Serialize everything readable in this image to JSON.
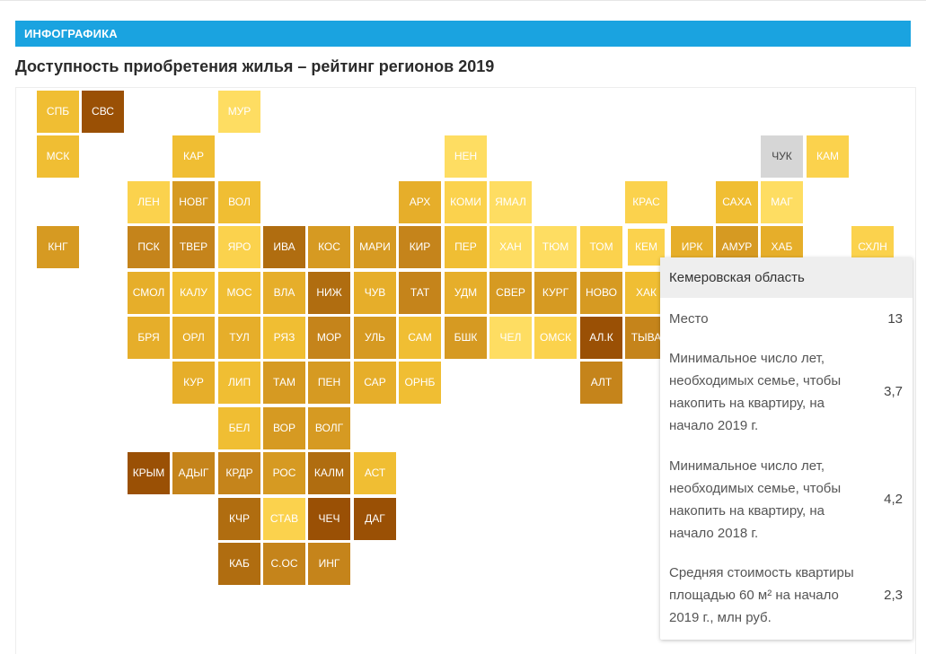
{
  "header": {
    "badge": "ИНФОГРАФИКА",
    "title": "Доступность приобретения жилья – рейтинг регионов 2019"
  },
  "palette": {
    "1": "#fedd62",
    "2": "#fbd24d",
    "3": "#f0be33",
    "4": "#e6ae2a",
    "5": "#d69a22",
    "6": "#c5841b",
    "7": "#b06d10",
    "8": "#9a5005",
    "gray": "#d6d6d6",
    "banner": "#1aa3e0"
  },
  "regions": [
    {
      "label": "СПБ",
      "c": 3
    },
    {
      "label": "СВС",
      "c": 8
    },
    {
      "label": "МУР",
      "c": 1
    },
    {
      "label": "МСК",
      "c": 3
    },
    {
      "label": "КАР",
      "c": 3
    },
    {
      "label": "НЕН",
      "c": 1
    },
    {
      "label": "ЧУК",
      "c": "gray"
    },
    {
      "label": "КАМ",
      "c": 2
    },
    {
      "label": "ЛЕН",
      "c": 2
    },
    {
      "label": "НОВГ",
      "c": 5
    },
    {
      "label": "ВОЛ",
      "c": 3
    },
    {
      "label": "АРХ",
      "c": 4
    },
    {
      "label": "КОМИ",
      "c": 2
    },
    {
      "label": "ЯМАЛ",
      "c": 1
    },
    {
      "label": "КРАС",
      "c": 2
    },
    {
      "label": "САХА",
      "c": 3
    },
    {
      "label": "МАГ",
      "c": 1
    },
    {
      "label": "КНГ",
      "c": 5
    },
    {
      "label": "ПСК",
      "c": 6
    },
    {
      "label": "ТВЕР",
      "c": 6
    },
    {
      "label": "ЯРО",
      "c": 2
    },
    {
      "label": "ИВА",
      "c": 7
    },
    {
      "label": "КОС",
      "c": 5
    },
    {
      "label": "МАРИ",
      "c": 5
    },
    {
      "label": "КИР",
      "c": 6
    },
    {
      "label": "ПЕР",
      "c": 3
    },
    {
      "label": "ХАН",
      "c": 1
    },
    {
      "label": "ТЮМ",
      "c": 1
    },
    {
      "label": "ТОМ",
      "c": 2
    },
    {
      "label": "КЕМ",
      "c": 2
    },
    {
      "label": "ИРК",
      "c": 4
    },
    {
      "label": "АМУР",
      "c": 5
    },
    {
      "label": "ХАБ",
      "c": 4
    },
    {
      "label": "СХЛН",
      "c": 2
    },
    {
      "label": "СМОЛ",
      "c": 4
    },
    {
      "label": "КАЛУ",
      "c": 3
    },
    {
      "label": "МОС",
      "c": 3
    },
    {
      "label": "ВЛА",
      "c": 4
    },
    {
      "label": "НИЖ",
      "c": 7
    },
    {
      "label": "ЧУВ",
      "c": 4
    },
    {
      "label": "ТАТ",
      "c": 6
    },
    {
      "label": "УДМ",
      "c": 4
    },
    {
      "label": "СВЕР",
      "c": 5
    },
    {
      "label": "КУРГ",
      "c": 5
    },
    {
      "label": "НОВО",
      "c": 5
    },
    {
      "label": "ХАК",
      "c": 3
    },
    {
      "label": "БРЯ",
      "c": 4
    },
    {
      "label": "ОРЛ",
      "c": 4
    },
    {
      "label": "ТУЛ",
      "c": 4
    },
    {
      "label": "РЯЗ",
      "c": 3
    },
    {
      "label": "МОР",
      "c": 6
    },
    {
      "label": "УЛЬ",
      "c": 5
    },
    {
      "label": "САМ",
      "c": 3
    },
    {
      "label": "БШК",
      "c": 5
    },
    {
      "label": "ЧЕЛ",
      "c": 1
    },
    {
      "label": "ОМСК",
      "c": 2
    },
    {
      "label": "АЛ.К",
      "c": 8
    },
    {
      "label": "ТЫВА",
      "c": 6
    },
    {
      "label": "КУР",
      "c": 4
    },
    {
      "label": "ЛИП",
      "c": 3
    },
    {
      "label": "ТАМ",
      "c": 5
    },
    {
      "label": "ПЕН",
      "c": 5
    },
    {
      "label": "САР",
      "c": 4
    },
    {
      "label": "ОРНБ",
      "c": 3
    },
    {
      "label": "АЛТ",
      "c": 6
    },
    {
      "label": "БЕЛ",
      "c": 3
    },
    {
      "label": "ВОР",
      "c": 5
    },
    {
      "label": "ВОЛГ",
      "c": 5
    },
    {
      "label": "КРЫМ",
      "c": 8
    },
    {
      "label": "АДЫГ",
      "c": 6
    },
    {
      "label": "КРДР",
      "c": 6
    },
    {
      "label": "РОС",
      "c": 5
    },
    {
      "label": "КАЛМ",
      "c": 7
    },
    {
      "label": "АСТ",
      "c": 3
    },
    {
      "label": "КЧР",
      "c": 7
    },
    {
      "label": "СТАВ",
      "c": 2
    },
    {
      "label": "ЧЕЧ",
      "c": 8
    },
    {
      "label": "ДАГ",
      "c": 8
    },
    {
      "label": "КАБ",
      "c": 7
    },
    {
      "label": "С.ОС",
      "c": 6
    },
    {
      "label": "ИНГ",
      "c": 6
    }
  ],
  "tooltip": {
    "region": "Кемеровская область",
    "rows": [
      {
        "label": "Место",
        "value": "13"
      },
      {
        "label": "Минимальное число лет, необходимых семье, чтобы накопить на квартиру, на начало 2019 г.",
        "value": "3,7"
      },
      {
        "label": "Минимальное число лет, необходимых семье, чтобы накопить на квартиру, на начало 2018 г.",
        "value": "4,2"
      },
      {
        "label": "Средняя стоимость квартиры площадью 60 м² на начало 2019 г., млн руб.",
        "value": "2,3"
      }
    ]
  }
}
